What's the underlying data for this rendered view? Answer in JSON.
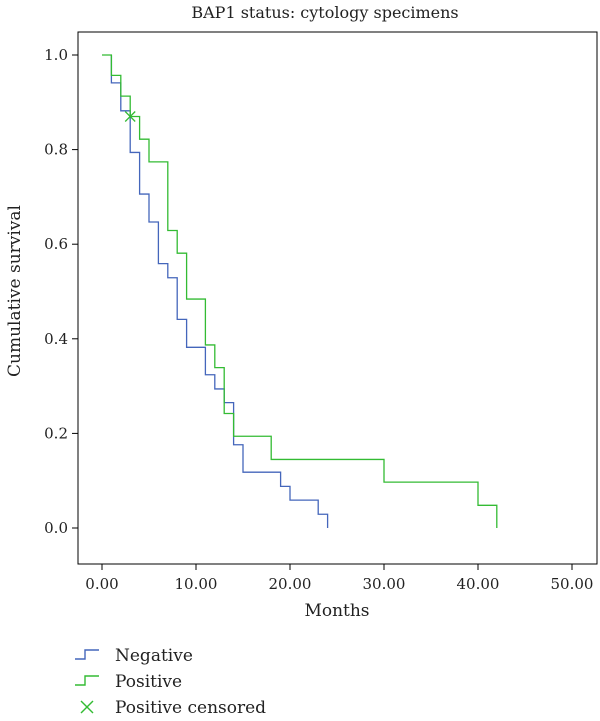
{
  "chart_data": {
    "type": "line",
    "title": "BAP1 status: cytology specimens",
    "xlabel": "Months",
    "ylabel": "Cumulative survival",
    "xlim": [
      0,
      50
    ],
    "ylim": [
      0,
      1
    ],
    "x_ticks": [
      "0.00",
      "10.00",
      "20.00",
      "30.00",
      "40.00",
      "50.00"
    ],
    "x_tick_values": [
      0,
      10,
      20,
      30,
      40,
      50
    ],
    "y_ticks": [
      "0.0",
      "0.2",
      "0.4",
      "0.6",
      "0.8",
      "1.0"
    ],
    "y_tick_values": [
      0,
      0.2,
      0.4,
      0.6,
      0.8,
      1.0
    ],
    "step": true,
    "grid": false,
    "legend_position": "bottom-left",
    "series": [
      {
        "name": "Negative",
        "color": "#4466bb",
        "points": [
          [
            1,
            1.0
          ],
          [
            1,
            0.941
          ],
          [
            2,
            0.941
          ],
          [
            2,
            0.882
          ],
          [
            3,
            0.882
          ],
          [
            3,
            0.794
          ],
          [
            4,
            0.794
          ],
          [
            4,
            0.706
          ],
          [
            5,
            0.706
          ],
          [
            5,
            0.647
          ],
          [
            6,
            0.647
          ],
          [
            6,
            0.559
          ],
          [
            7,
            0.559
          ],
          [
            7,
            0.529
          ],
          [
            8,
            0.529
          ],
          [
            8,
            0.441
          ],
          [
            9,
            0.441
          ],
          [
            9,
            0.382
          ],
          [
            11,
            0.382
          ],
          [
            11,
            0.324
          ],
          [
            12,
            0.324
          ],
          [
            12,
            0.294
          ],
          [
            13,
            0.294
          ],
          [
            13,
            0.265
          ],
          [
            14,
            0.265
          ],
          [
            14,
            0.176
          ],
          [
            15,
            0.176
          ],
          [
            15,
            0.118
          ],
          [
            19,
            0.118
          ],
          [
            19,
            0.088
          ],
          [
            20,
            0.088
          ],
          [
            20,
            0.059
          ],
          [
            23,
            0.059
          ],
          [
            23,
            0.029
          ],
          [
            24,
            0.029
          ],
          [
            24,
            0.0
          ]
        ]
      },
      {
        "name": "Positive",
        "color": "#33bb33",
        "points": [
          [
            0,
            1.0
          ],
          [
            1,
            1.0
          ],
          [
            1,
            0.957
          ],
          [
            2,
            0.957
          ],
          [
            2,
            0.913
          ],
          [
            3,
            0.913
          ],
          [
            3,
            0.87
          ],
          [
            4,
            0.87
          ],
          [
            4,
            0.822
          ],
          [
            5,
            0.822
          ],
          [
            5,
            0.774
          ],
          [
            7,
            0.774
          ],
          [
            7,
            0.629
          ],
          [
            8,
            0.629
          ],
          [
            8,
            0.581
          ],
          [
            9,
            0.581
          ],
          [
            9,
            0.484
          ],
          [
            11,
            0.484
          ],
          [
            11,
            0.387
          ],
          [
            12,
            0.387
          ],
          [
            12,
            0.339
          ],
          [
            13,
            0.339
          ],
          [
            13,
            0.242
          ],
          [
            14,
            0.242
          ],
          [
            14,
            0.194
          ],
          [
            18,
            0.194
          ],
          [
            18,
            0.145
          ],
          [
            30,
            0.145
          ],
          [
            30,
            0.097
          ],
          [
            40,
            0.097
          ],
          [
            40,
            0.048
          ],
          [
            42,
            0.048
          ],
          [
            42,
            0.0
          ]
        ]
      }
    ],
    "censored": [
      {
        "series": "Positive",
        "x": 3,
        "y": 0.87,
        "color": "#33bb33"
      }
    ],
    "legend": [
      {
        "label": "Negative",
        "kind": "step",
        "color": "#4466bb"
      },
      {
        "label": "Positive",
        "kind": "step",
        "color": "#33bb33"
      },
      {
        "label": "Positive censored",
        "kind": "cross",
        "color": "#33bb33"
      }
    ]
  }
}
